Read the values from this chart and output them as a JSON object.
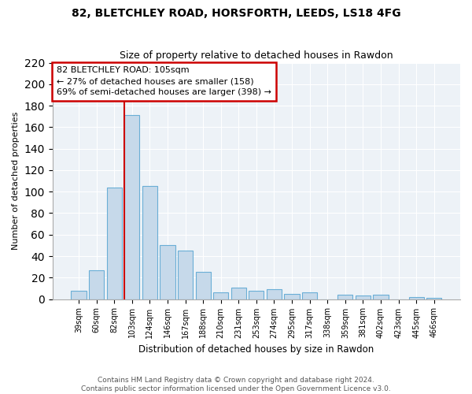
{
  "title1": "82, BLETCHLEY ROAD, HORSFORTH, LEEDS, LS18 4FG",
  "title2": "Size of property relative to detached houses in Rawdon",
  "xlabel": "Distribution of detached houses by size in Rawdon",
  "ylabel": "Number of detached properties",
  "bar_labels": [
    "39sqm",
    "60sqm",
    "82sqm",
    "103sqm",
    "124sqm",
    "146sqm",
    "167sqm",
    "188sqm",
    "210sqm",
    "231sqm",
    "253sqm",
    "274sqm",
    "295sqm",
    "317sqm",
    "338sqm",
    "359sqm",
    "381sqm",
    "402sqm",
    "423sqm",
    "445sqm",
    "466sqm"
  ],
  "bar_values": [
    8,
    27,
    104,
    171,
    105,
    50,
    45,
    25,
    6,
    11,
    8,
    9,
    5,
    6,
    0,
    4,
    3,
    4,
    0,
    2,
    1
  ],
  "bar_color": "#c6d9ea",
  "bar_edge_color": "#6aaed6",
  "vline_color": "#cc0000",
  "annotation_line1": "82 BLETCHLEY ROAD: 105sqm",
  "annotation_line2": "← 27% of detached houses are smaller (158)",
  "annotation_line3": "69% of semi-detached houses are larger (398) →",
  "annotation_box_color": "white",
  "annotation_box_edge": "#cc0000",
  "ylim": [
    0,
    220
  ],
  "yticks": [
    0,
    20,
    40,
    60,
    80,
    100,
    120,
    140,
    160,
    180,
    200,
    220
  ],
  "footer1": "Contains HM Land Registry data © Crown copyright and database right 2024.",
  "footer2": "Contains public sector information licensed under the Open Government Licence v3.0.",
  "bg_color": "#edf2f7",
  "grid_color": "#ffffff",
  "title1_fontsize": 10,
  "title2_fontsize": 9
}
